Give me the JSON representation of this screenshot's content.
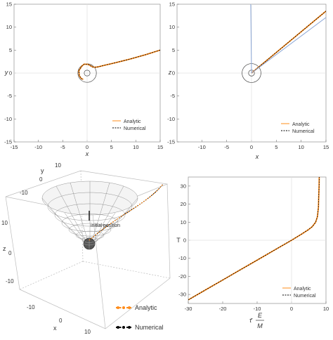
{
  "colors": {
    "analytic": "#ff8c1a",
    "numerical": "#000000",
    "grid": "#e0e0e0",
    "axis": "#bdbdbd",
    "line3d": "#8aa6d6",
    "surface": "#999999"
  },
  "chart_data": [
    {
      "id": "panel_xy",
      "type": "line",
      "xlabel": "x",
      "ylabel": "y",
      "xlim": [
        -15,
        15
      ],
      "ylim": [
        -15,
        15
      ],
      "xticks": [
        -15,
        -10,
        -5,
        0,
        5,
        10,
        15
      ],
      "yticks": [
        -15,
        -10,
        -5,
        0,
        5,
        10,
        15
      ],
      "legend": [
        "Analytic",
        "Numerical"
      ],
      "legend_position": "bottom-right",
      "circles": [
        {
          "cx": 0,
          "cy": 0,
          "r": 1.9
        },
        {
          "cx": 0,
          "cy": 0,
          "r": 0.6
        }
      ],
      "series": [
        {
          "name": "Analytic",
          "style": "solid",
          "x": [
            15,
            12,
            9,
            6,
            4,
            3,
            2.2,
            1.6,
            1.1,
            0.2,
            -0.6,
            -1.1,
            -1.7,
            -1.6,
            -1.2,
            -0.8
          ],
          "y": [
            5,
            4,
            3.1,
            2.3,
            1.8,
            1.55,
            1.35,
            1.25,
            1.35,
            1.9,
            1.95,
            1.5,
            0.5,
            -0.6,
            -1.2,
            -1.4
          ]
        },
        {
          "name": "Numerical",
          "style": "dashed",
          "x": [
            15,
            12,
            9,
            6,
            4,
            3,
            2.2,
            1.6,
            1.1,
            0.2,
            -0.6,
            -1.1,
            -1.7,
            -1.6,
            -1.2,
            -0.8
          ],
          "y": [
            5,
            4,
            3.1,
            2.3,
            1.8,
            1.55,
            1.35,
            1.25,
            1.35,
            1.9,
            1.95,
            1.5,
            0.5,
            -0.6,
            -1.2,
            -1.4
          ]
        }
      ]
    },
    {
      "id": "panel_xz",
      "type": "line",
      "xlabel": "x",
      "ylabel": "z",
      "xlim": [
        -15,
        15
      ],
      "ylim": [
        -15,
        15
      ],
      "xticks": [
        -10,
        -5,
        0,
        5,
        10,
        15
      ],
      "yticks": [
        -15,
        -10,
        -5,
        0,
        5,
        10,
        15
      ],
      "legend": [
        "Analytic",
        "Numerical"
      ],
      "legend_position": "bottom-right",
      "circles": [
        {
          "cx": 0,
          "cy": 0,
          "r": 1.9
        },
        {
          "cx": 0,
          "cy": 0,
          "r": 0.6
        }
      ],
      "series": [
        {
          "name": "Analytic",
          "style": "solid",
          "x": [
            0,
            15
          ],
          "y": [
            0,
            13.5
          ]
        },
        {
          "name": "Numerical",
          "style": "dashed",
          "x": [
            0,
            15
          ],
          "y": [
            0,
            13.5
          ]
        },
        {
          "name": "",
          "style": "blue",
          "x": [
            0,
            15
          ],
          "y": [
            0,
            12.1
          ]
        },
        {
          "name": "",
          "style": "blue",
          "x": [
            0,
            -0.15
          ],
          "y": [
            0,
            15
          ]
        }
      ]
    },
    {
      "id": "panel_3d",
      "type": "scatter",
      "xlabel": "x",
      "ylabel": "y",
      "zlabel": "z",
      "xticks": [
        -10,
        0,
        10
      ],
      "yticks": [
        -10,
        0,
        10
      ],
      "zticks": [
        -10,
        0,
        10
      ],
      "annotation": "initial position",
      "legend": [
        "Analytic",
        "Numerical"
      ],
      "legend_position": "bottom-right"
    },
    {
      "id": "panel_T",
      "type": "line",
      "xlabel": "τ̄ E/M",
      "xlabel_parts": [
        "τ̄",
        "E",
        "M"
      ],
      "ylabel": "T",
      "xlim": [
        -30,
        10
      ],
      "ylim": [
        -35,
        35
      ],
      "xticks": [
        -30,
        -20,
        -10,
        0,
        10
      ],
      "yticks": [
        -30,
        -20,
        -10,
        0,
        10,
        20,
        30
      ],
      "legend": [
        "Analytic",
        "Numerical"
      ],
      "legend_position": "bottom-right",
      "series": [
        {
          "name": "Analytic",
          "style": "solid",
          "x": [
            -30,
            -25,
            -20,
            -15,
            -10,
            -5,
            0,
            3,
            5,
            6,
            7,
            7.5,
            7.8,
            7.9,
            8.0,
            8.05
          ],
          "y": [
            -33,
            -27.5,
            -22,
            -16.5,
            -11,
            -5.5,
            0,
            3.5,
            6,
            7.5,
            10,
            13,
            18,
            24,
            30,
            35
          ]
        },
        {
          "name": "Numerical",
          "style": "dashed",
          "x": [
            -30,
            -25,
            -20,
            -15,
            -10,
            -5,
            0,
            3,
            5,
            6,
            7,
            7.5,
            7.8,
            7.9,
            8.0,
            8.05
          ],
          "y": [
            -33,
            -27.5,
            -22,
            -16.5,
            -11,
            -5.5,
            0,
            3.5,
            6,
            7.5,
            10,
            13,
            18,
            24,
            30,
            35
          ]
        }
      ]
    }
  ]
}
